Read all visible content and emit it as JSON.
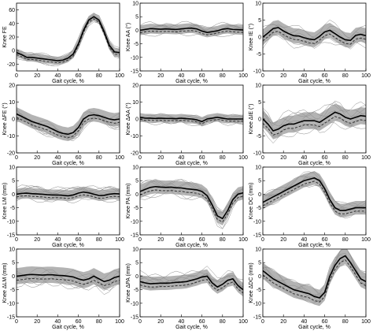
{
  "figure": {
    "background": "#ffffff",
    "band_color": "#9a9a9a",
    "line_color": "#000000",
    "thin_line_color": "#8c8c8c"
  },
  "chart_data": [
    {
      "type": "line",
      "ylabel": "Knee FE",
      "xlabel": "Gait cycle, %",
      "xlim": [
        0,
        100
      ],
      "ylim": [
        -30,
        70
      ],
      "yticks": [
        -20,
        0,
        20,
        40,
        60
      ],
      "xticks": [
        0,
        20,
        40,
        60,
        80,
        100
      ],
      "band": "shaded ±SD around mean",
      "series": [
        {
          "style": "mean",
          "x": [
            0,
            5,
            10,
            15,
            20,
            25,
            30,
            35,
            40,
            45,
            50,
            55,
            60,
            65,
            70,
            75,
            80,
            85,
            90,
            95,
            100
          ],
          "values": [
            -3,
            -6,
            -10,
            -10,
            -11,
            -12,
            -13,
            -14,
            -15,
            -14,
            -11,
            -5,
            10,
            30,
            45,
            50,
            45,
            28,
            8,
            -2,
            -3
          ],
          "band_halfwidth": 6
        }
      ]
    },
    {
      "type": "line",
      "ylabel": "Knee AA (°)",
      "xlabel": "Gait cycle, %",
      "xlim": [
        0,
        100
      ],
      "ylim": [
        -15,
        10
      ],
      "yticks": [
        -15,
        -10,
        -5,
        0,
        5,
        10
      ],
      "xticks": [
        0,
        20,
        40,
        60,
        80,
        100
      ],
      "series": [
        {
          "style": "mean",
          "x": [
            0,
            5,
            10,
            15,
            20,
            25,
            30,
            35,
            40,
            45,
            50,
            55,
            60,
            65,
            70,
            75,
            80,
            85,
            90,
            95,
            100
          ],
          "values": [
            0,
            0.3,
            0.6,
            0.5,
            0.4,
            0.5,
            0.4,
            0.3,
            0.5,
            0.7,
            0.8,
            0.5,
            -0.3,
            -0.8,
            -0.5,
            -0.2,
            0.4,
            0.6,
            0.3,
            0.2,
            0.1
          ],
          "band_halfwidth": 1.8
        }
      ]
    },
    {
      "type": "line",
      "ylabel": "Knee IE (°)",
      "xlabel": "Gait cycle, %",
      "xlim": [
        0,
        100
      ],
      "ylim": [
        -10,
        10
      ],
      "yticks": [
        -10,
        -5,
        0,
        5,
        10
      ],
      "xticks": [
        0,
        20,
        40,
        60,
        80,
        100
      ],
      "series": [
        {
          "style": "mean",
          "x": [
            0,
            5,
            10,
            15,
            20,
            25,
            30,
            35,
            40,
            45,
            50,
            55,
            60,
            65,
            70,
            75,
            80,
            85,
            90,
            95,
            100
          ],
          "values": [
            0,
            1.2,
            2.5,
            2.8,
            1.8,
            1,
            0.4,
            0.3,
            -0.2,
            -0.6,
            -0.8,
            0.2,
            1.5,
            2,
            1,
            0,
            -0.8,
            -1,
            0.5,
            0.8,
            0.4
          ],
          "band_halfwidth": 2.2
        }
      ]
    },
    {
      "type": "line",
      "ylabel": "Knee ΔFE (°)",
      "xlabel": "Gait cycle, %",
      "xlim": [
        0,
        100
      ],
      "ylim": [
        -20,
        20
      ],
      "yticks": [
        -20,
        -10,
        0,
        10,
        20
      ],
      "xticks": [
        0,
        20,
        40,
        60,
        80,
        100
      ],
      "series": [
        {
          "style": "mean",
          "x": [
            0,
            5,
            10,
            15,
            20,
            25,
            30,
            35,
            40,
            45,
            50,
            55,
            60,
            65,
            70,
            75,
            80,
            85,
            90,
            95,
            100
          ],
          "values": [
            3,
            1.5,
            0,
            -1.5,
            -2.5,
            -3.5,
            -4.5,
            -6,
            -7.5,
            -8.5,
            -9,
            -8,
            -5,
            0,
            2,
            2.5,
            2,
            1,
            0,
            -0.5,
            0
          ],
          "band_halfwidth": 4
        }
      ]
    },
    {
      "type": "line",
      "ylabel": "Knee ΔAA (°)",
      "xlabel": "Gait cycle, %",
      "xlim": [
        0,
        100
      ],
      "ylim": [
        -20,
        20
      ],
      "yticks": [
        -20,
        -10,
        0,
        10,
        20
      ],
      "xticks": [
        0,
        20,
        40,
        60,
        80,
        100
      ],
      "series": [
        {
          "style": "mean",
          "x": [
            0,
            5,
            10,
            15,
            20,
            25,
            30,
            35,
            40,
            45,
            50,
            55,
            60,
            65,
            70,
            75,
            80,
            85,
            90,
            95,
            100
          ],
          "values": [
            1,
            0.5,
            0.5,
            0.3,
            0.5,
            0.3,
            0.3,
            0.2,
            0.5,
            0.2,
            0,
            -0.5,
            -1.5,
            0,
            0.5,
            1,
            0.5,
            0,
            0,
            0,
            0
          ],
          "band_halfwidth": 2.5
        }
      ]
    },
    {
      "type": "line",
      "ylabel": "Knee ΔIE (°)",
      "xlabel": "Gait cycle, %",
      "xlim": [
        0,
        100
      ],
      "ylim": [
        -10,
        10
      ],
      "yticks": [
        -10,
        -5,
        0,
        5,
        10
      ],
      "xticks": [
        0,
        20,
        40,
        60,
        80,
        100
      ],
      "series": [
        {
          "style": "mean",
          "x": [
            0,
            5,
            10,
            15,
            20,
            25,
            30,
            35,
            40,
            45,
            50,
            55,
            60,
            65,
            70,
            75,
            80,
            85,
            90,
            95,
            100
          ],
          "values": [
            0,
            -1.5,
            -3.5,
            -3,
            -2,
            -1.5,
            -1.5,
            -1,
            -0.5,
            -0.5,
            -0.5,
            -1,
            0,
            1,
            2,
            1.5,
            0.5,
            0,
            0.5,
            1,
            0.8
          ],
          "band_halfwidth": 2.5
        }
      ]
    },
    {
      "type": "line",
      "ylabel": "Knee LM (mm)",
      "xlabel": "Gait cycle, %",
      "xlim": [
        0,
        100
      ],
      "ylim": [
        -15,
        10
      ],
      "yticks": [
        -15,
        -10,
        -5,
        0,
        5,
        10
      ],
      "xticks": [
        0,
        20,
        40,
        60,
        80,
        100
      ],
      "series": [
        {
          "style": "mean",
          "x": [
            0,
            5,
            10,
            15,
            20,
            25,
            30,
            35,
            40,
            45,
            50,
            55,
            60,
            65,
            70,
            75,
            80,
            85,
            90,
            95,
            100
          ],
          "values": [
            0,
            0.3,
            0.4,
            0.2,
            0.1,
            0,
            -0.2,
            -0.3,
            -0.3,
            -0.4,
            -0.6,
            -0.3,
            0.4,
            0.8,
            0.5,
            0,
            -0.5,
            -0.4,
            0,
            0.2,
            0.1
          ],
          "band_halfwidth": 2
        }
      ]
    },
    {
      "type": "line",
      "ylabel": "Knee PA (mm)",
      "xlabel": "Gait cycle, %",
      "xlim": [
        0,
        100
      ],
      "ylim": [
        -15,
        10
      ],
      "yticks": [
        -15,
        -10,
        -5,
        0,
        5,
        10
      ],
      "xticks": [
        0,
        20,
        40,
        60,
        80,
        100
      ],
      "series": [
        {
          "style": "mean",
          "x": [
            0,
            5,
            10,
            15,
            20,
            25,
            30,
            35,
            40,
            45,
            50,
            55,
            60,
            65,
            70,
            75,
            80,
            85,
            90,
            95,
            100
          ],
          "values": [
            1,
            1.8,
            2.5,
            2.8,
            2.6,
            2.5,
            2.6,
            2.4,
            2.3,
            2,
            1.8,
            1.6,
            1,
            -0.5,
            -4,
            -8,
            -9,
            -6,
            -2,
            0,
            0.5
          ],
          "band_halfwidth": 2.5
        }
      ]
    },
    {
      "type": "line",
      "ylabel": "Knee DC (mm)",
      "xlabel": "Gait cycle, %",
      "xlim": [
        0,
        100
      ],
      "ylim": [
        -15,
        10
      ],
      "yticks": [
        -15,
        -10,
        -5,
        0,
        5,
        10
      ],
      "xticks": [
        0,
        20,
        40,
        60,
        80,
        100
      ],
      "series": [
        {
          "style": "mean",
          "x": [
            0,
            5,
            10,
            15,
            20,
            25,
            30,
            35,
            40,
            45,
            50,
            55,
            60,
            65,
            70,
            75,
            80,
            85,
            90,
            95,
            100
          ],
          "values": [
            -3,
            -2,
            -1,
            0,
            1,
            2,
            3,
            4,
            5,
            5.5,
            6,
            5,
            2,
            -2,
            -5,
            -6,
            -6,
            -5.5,
            -5,
            -5,
            -5
          ],
          "band_halfwidth": 2.5
        }
      ]
    },
    {
      "type": "line",
      "ylabel": "Knee ΔLM (mm)",
      "xlabel": "Gait cycle, %",
      "xlim": [
        0,
        100
      ],
      "ylim": [
        -15,
        10
      ],
      "yticks": [
        -15,
        -10,
        -5,
        0,
        5,
        10
      ],
      "xticks": [
        0,
        20,
        40,
        60,
        80,
        100
      ],
      "series": [
        {
          "style": "mean",
          "x": [
            0,
            5,
            10,
            15,
            20,
            25,
            30,
            35,
            40,
            45,
            50,
            55,
            60,
            65,
            70,
            75,
            80,
            85,
            90,
            95,
            100
          ],
          "values": [
            0,
            0.2,
            0.5,
            0.6,
            0.5,
            0.4,
            0.5,
            0.5,
            0.3,
            0.2,
            0,
            -0.3,
            -1,
            -1.5,
            -1,
            0,
            -1,
            -2,
            -1.5,
            -0.5,
            0
          ],
          "band_halfwidth": 3
        }
      ]
    },
    {
      "type": "line",
      "ylabel": "Knee ΔPA (mm)",
      "xlabel": "Gait cycle, %",
      "xlim": [
        0,
        100
      ],
      "ylim": [
        -15,
        10
      ],
      "yticks": [
        -15,
        -10,
        -5,
        0,
        5,
        10
      ],
      "xticks": [
        0,
        20,
        40,
        60,
        80,
        100
      ],
      "series": [
        {
          "style": "mean",
          "x": [
            0,
            5,
            10,
            15,
            20,
            25,
            30,
            35,
            40,
            45,
            50,
            55,
            60,
            65,
            70,
            75,
            80,
            85,
            90,
            95,
            100
          ],
          "values": [
            -2,
            -2.5,
            -2.8,
            -2.7,
            -2.6,
            -2.6,
            -2.5,
            -2.3,
            -2.2,
            -2,
            -1.5,
            -1,
            -0.3,
            0,
            -2.5,
            -4,
            -3,
            -1.5,
            -1,
            -3.5,
            -5
          ],
          "band_halfwidth": 2.5
        }
      ]
    },
    {
      "type": "line",
      "ylabel": "Knee ΔDC (mm)",
      "xlabel": "Gait cycle, %",
      "xlim": [
        0,
        100
      ],
      "ylim": [
        -15,
        10
      ],
      "yticks": [
        -15,
        -10,
        -5,
        0,
        5,
        10
      ],
      "xticks": [
        0,
        20,
        40,
        60,
        80,
        100
      ],
      "series": [
        {
          "style": "mean",
          "x": [
            0,
            5,
            10,
            15,
            20,
            25,
            30,
            35,
            40,
            45,
            50,
            55,
            60,
            65,
            70,
            75,
            80,
            85,
            90,
            95,
            100
          ],
          "values": [
            2,
            0.5,
            -1,
            -2,
            -3,
            -4,
            -5,
            -5.5,
            -6,
            -6.5,
            -7.5,
            -8,
            -6,
            0,
            4,
            6.5,
            7.5,
            5,
            2,
            -1,
            -2
          ],
          "band_halfwidth": 3
        }
      ]
    }
  ]
}
